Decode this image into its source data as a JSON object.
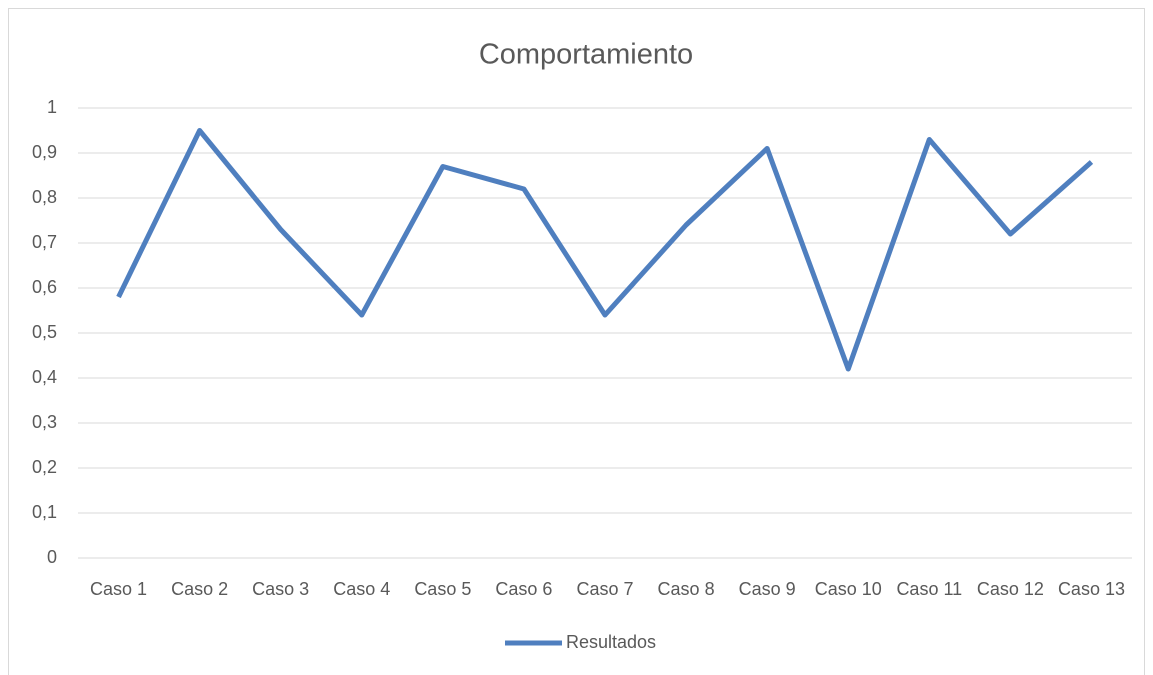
{
  "chart_data": {
    "type": "line",
    "title": "Comportamiento",
    "categories": [
      "Caso 1",
      "Caso 2",
      "Caso 3",
      "Caso 4",
      "Caso 5",
      "Caso 6",
      "Caso 7",
      "Caso 8",
      "Caso 9",
      "Caso 10",
      "Caso 11",
      "Caso 12",
      "Caso 13"
    ],
    "series": [
      {
        "name": "Resultados",
        "color": "#4f7fbf",
        "values": [
          0.58,
          0.95,
          0.73,
          0.54,
          0.87,
          0.82,
          0.54,
          0.74,
          0.91,
          0.42,
          0.93,
          0.72,
          0.88
        ]
      }
    ],
    "ylim": [
      0,
      1
    ],
    "yticks": [
      0,
      {
        "value": 0.1,
        "label": "0,1"
      },
      {
        "value": 0.2,
        "label": "0,2"
      },
      {
        "value": 0.3,
        "label": "0,3"
      },
      {
        "value": 0.4,
        "label": "0,4"
      },
      {
        "value": 0.5,
        "label": "0,5"
      },
      {
        "value": 0.6,
        "label": "0,6"
      },
      {
        "value": 0.7,
        "label": "0,7"
      },
      {
        "value": 0.8,
        "label": "0,8"
      },
      {
        "value": 0.9,
        "label": "0,9"
      },
      1
    ],
    "grid": true,
    "legend": "bottom"
  }
}
